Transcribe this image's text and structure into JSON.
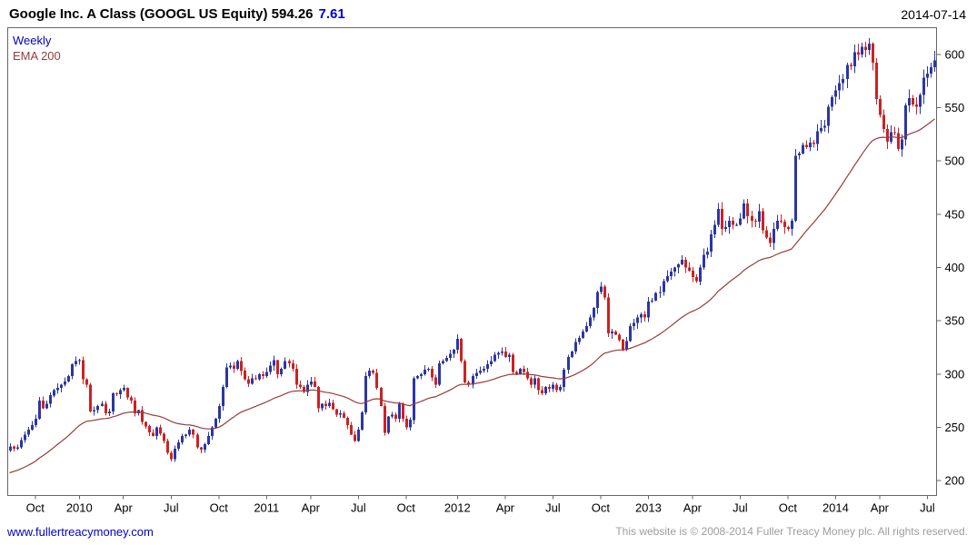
{
  "header": {
    "title_main": "Google Inc. A Class (GOOGL US Equity) 594.26",
    "title_change": "7.61",
    "date": "2014-07-14"
  },
  "legend": {
    "series_label": "Weekly",
    "ema_label": "EMA 200"
  },
  "footer": {
    "link": "www.fullertreacymoney.com",
    "copyright": "This website is © 2008-2014 Fuller Treacy Money plc. All rights reserved."
  },
  "colors": {
    "up": "#2b36a4",
    "down": "#cc2222",
    "ema": "#9a3b38",
    "accent_blue": "#0000cc",
    "copyright": "#9d9d9d",
    "border": "#666666",
    "axis_text": "#000000"
  },
  "chart_data": {
    "type": "candlestick",
    "title": "Google Inc. A Class (GOOGL US Equity)",
    "last_price": 594.26,
    "change": 7.61,
    "date": "2014-07-14",
    "timeframe_label": "Weekly",
    "indicator_label": "EMA 200",
    "ema_span_weeks": 40,
    "grid": false,
    "legend_position": "top-left",
    "ylim": [
      186,
      625
    ],
    "yticks": [
      200,
      250,
      300,
      350,
      400,
      450,
      500,
      550,
      600
    ],
    "xticks": [
      {
        "label": "Oct",
        "index": 7
      },
      {
        "label": "2010",
        "index": 19
      },
      {
        "label": "Apr",
        "index": 31
      },
      {
        "label": "Jul",
        "index": 44
      },
      {
        "label": "Oct",
        "index": 57
      },
      {
        "label": "2011",
        "index": 70
      },
      {
        "label": "Apr",
        "index": 82
      },
      {
        "label": "Jul",
        "index": 95
      },
      {
        "label": "Oct",
        "index": 108
      },
      {
        "label": "2012",
        "index": 122
      },
      {
        "label": "Apr",
        "index": 135
      },
      {
        "label": "Jul",
        "index": 148
      },
      {
        "label": "Oct",
        "index": 161
      },
      {
        "label": "2013",
        "index": 174
      },
      {
        "label": "Apr",
        "index": 186
      },
      {
        "label": "Jul",
        "index": 199
      },
      {
        "label": "Oct",
        "index": 212
      },
      {
        "label": "2014",
        "index": 225
      },
      {
        "label": "Apr",
        "index": 237
      },
      {
        "label": "Jul",
        "index": 250
      }
    ],
    "weekly_closes": [
      232,
      230,
      231,
      238,
      243,
      248,
      252,
      258,
      275,
      268,
      272,
      280,
      285,
      287,
      290,
      293,
      298,
      309,
      312,
      313,
      295,
      290,
      265,
      266,
      270,
      272,
      263,
      265,
      282,
      281,
      285,
      287,
      278,
      275,
      263,
      266,
      255,
      251,
      245,
      242,
      250,
      244,
      237,
      226,
      220,
      230,
      236,
      242,
      243,
      248,
      243,
      231,
      229,
      234,
      242,
      250,
      258,
      270,
      288,
      306,
      308,
      305,
      312,
      303,
      295,
      291,
      296,
      295,
      300,
      298,
      302,
      308,
      313,
      300,
      305,
      312,
      310,
      305,
      290,
      288,
      283,
      290,
      293,
      288,
      268,
      272,
      270,
      273,
      267,
      262,
      263,
      259,
      252,
      243,
      237,
      248,
      264,
      298,
      303,
      301,
      287,
      270,
      245,
      260,
      262,
      258,
      272,
      258,
      250,
      257,
      296,
      298,
      300,
      304,
      305,
      297,
      290,
      310,
      312,
      315,
      319,
      323,
      333,
      312,
      292,
      290,
      298,
      301,
      303,
      305,
      309,
      312,
      318,
      320,
      321,
      316,
      318,
      302,
      300,
      305,
      302,
      296,
      290,
      296,
      285,
      282,
      288,
      286,
      290,
      285,
      288,
      304,
      316,
      321,
      330,
      334,
      340,
      345,
      353,
      362,
      377,
      382,
      372,
      338,
      340,
      337,
      332,
      323,
      331,
      345,
      348,
      353,
      356,
      353,
      368,
      369,
      376,
      377,
      387,
      392,
      396,
      400,
      403,
      407,
      400,
      397,
      391,
      387,
      400,
      412,
      415,
      431,
      440,
      455,
      436,
      438,
      444,
      440,
      440,
      446,
      460,
      448,
      444,
      443,
      453,
      435,
      428,
      423,
      436,
      444,
      443,
      438,
      436,
      444,
      505,
      507,
      515,
      513,
      517,
      516,
      528,
      531,
      533,
      551,
      560,
      566,
      573,
      577,
      590,
      589,
      602,
      600,
      607,
      604,
      610,
      592,
      558,
      543,
      530,
      518,
      527,
      526,
      511,
      520,
      552,
      559,
      553,
      551,
      562,
      578,
      582,
      588,
      594.26
    ]
  }
}
